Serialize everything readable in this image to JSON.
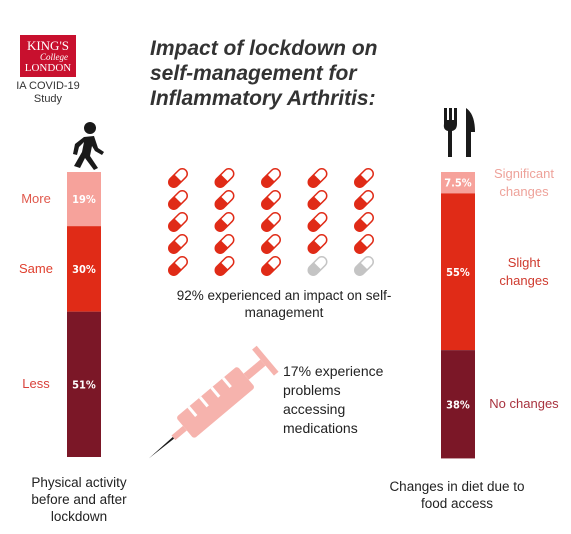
{
  "logo": {
    "name": "KING'S",
    "sub": "College",
    "city": "LONDON"
  },
  "study": "IA COVID-19 Study",
  "title": "Impact of lockdown on self-management for Inflammatory Arthritis:",
  "medication_note": "17% experience problems accessing medications",
  "chart_data": [
    {
      "type": "stacked-bar",
      "caption": "Physical activity before and after lockdown",
      "series": [
        {
          "name": "More",
          "color": "#f6a29b",
          "label_color": "#e0584c",
          "values": [
            19
          ],
          "value_labels": [
            "19%"
          ]
        },
        {
          "name": "Same",
          "color": "#e02b17",
          "label_color": "#e0402f",
          "values": [
            30
          ],
          "value_labels": [
            "30%"
          ]
        },
        {
          "name": "Less",
          "color": "#7b1727",
          "label_color": "#d8403a",
          "values": [
            51
          ],
          "value_labels": [
            "51%"
          ]
        }
      ]
    },
    {
      "type": "stacked-bar",
      "caption": "Changes in diet due to food access",
      "series": [
        {
          "name": "Significant changes",
          "color": "#f6a29b",
          "label_color": "#eea29a",
          "values": [
            7.5
          ],
          "value_labels": [
            "7.5%"
          ]
        },
        {
          "name": "Slight changes",
          "color": "#e02b17",
          "label_color": "#cf3a2e",
          "values": [
            55
          ],
          "value_labels": [
            "55%"
          ]
        },
        {
          "name": "No changes",
          "color": "#7b1727",
          "label_color": "#a8323e",
          "values": [
            38
          ],
          "value_labels": [
            "38%"
          ]
        }
      ]
    },
    {
      "type": "pictogram",
      "caption": "92% experienced an impact on self-management",
      "values": [
        92
      ],
      "icon_count": 25,
      "color": "#e02b17",
      "rest_color": "#c4c4c4"
    }
  ]
}
